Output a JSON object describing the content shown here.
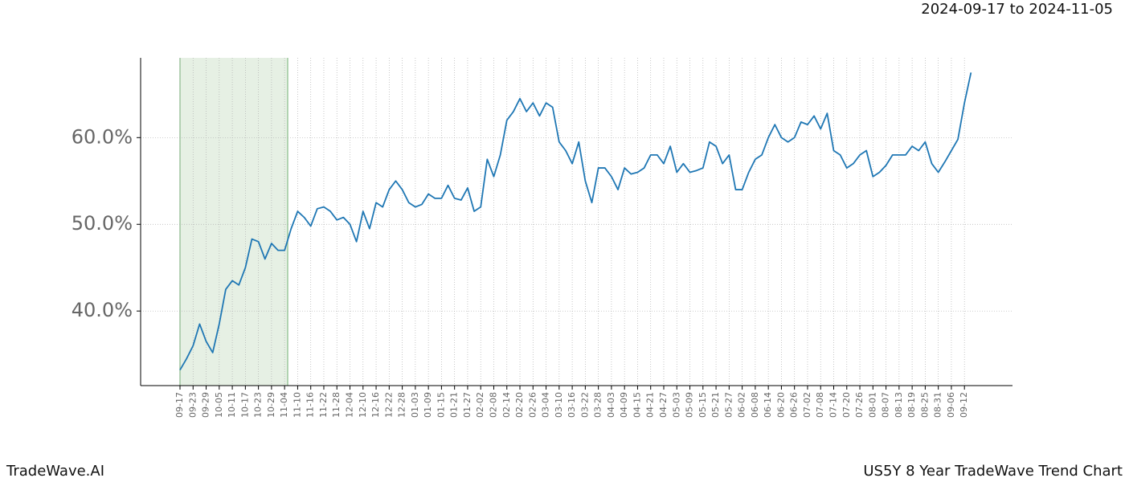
{
  "chart_data": {
    "type": "line",
    "title": "2024-09-17 to 2024-11-05",
    "footer_left": "TradeWave.AI",
    "footer_right": "US5Y 8 Year TradeWave Trend Chart",
    "categories": [
      "09-17",
      null,
      "09-23",
      null,
      "09-29",
      null,
      "10-05",
      null,
      "10-11",
      null,
      "10-17",
      null,
      "10-23",
      null,
      "10-29",
      null,
      "11-04",
      null,
      "11-10",
      null,
      "11-16",
      null,
      "11-22",
      null,
      "11-28",
      null,
      "12-04",
      null,
      "12-10",
      null,
      "12-16",
      null,
      "12-22",
      null,
      "12-28",
      null,
      "01-03",
      null,
      "01-09",
      null,
      "01-15",
      null,
      "01-21",
      null,
      "01-27",
      null,
      "02-02",
      null,
      "02-08",
      null,
      "02-14",
      null,
      "02-20",
      null,
      "02-26",
      null,
      "03-04",
      null,
      "03-10",
      null,
      "03-16",
      null,
      "03-22",
      null,
      "03-28",
      null,
      "04-03",
      null,
      "04-09",
      null,
      "04-15",
      null,
      "04-21",
      null,
      "04-27",
      null,
      "05-03",
      null,
      "05-09",
      null,
      "05-15",
      null,
      "05-21",
      null,
      "05-27",
      null,
      "06-02",
      null,
      "06-08",
      null,
      "06-14",
      null,
      "06-20",
      null,
      "06-26",
      null,
      "07-02",
      null,
      "07-08",
      null,
      "07-14",
      null,
      "07-20",
      null,
      "07-26",
      null,
      "08-01",
      null,
      "08-07",
      null,
      "08-13",
      null,
      "08-19",
      null,
      "08-25",
      null,
      "08-31",
      null,
      "09-06",
      null,
      "09-12",
      null
    ],
    "values": [
      33.2,
      34.5,
      36,
      38.5,
      36.5,
      35.2,
      38.5,
      42.5,
      43.5,
      43,
      45,
      48.3,
      48,
      46,
      47.8,
      47,
      47,
      49.5,
      51.5,
      50.8,
      49.8,
      51.8,
      52,
      51.5,
      50.5,
      50.8,
      50,
      48,
      51.5,
      49.5,
      52.5,
      52,
      54,
      55,
      54,
      52.5,
      52,
      52.3,
      53.5,
      53,
      53,
      54.5,
      53,
      52.8,
      54.2,
      51.5,
      52,
      57.5,
      55.5,
      58,
      62,
      63,
      64.5,
      63,
      64,
      62.5,
      64,
      63.5,
      59.5,
      58.5,
      57,
      59.5,
      55,
      52.5,
      56.5,
      56.5,
      55.5,
      54,
      56.5,
      55.8,
      56,
      56.5,
      58,
      58,
      57,
      59,
      56,
      57,
      56,
      56.2,
      56.5,
      59.5,
      59,
      57,
      58,
      54,
      54,
      56,
      57.5,
      58,
      60,
      61.5,
      60,
      59.5,
      60,
      61.8,
      61.5,
      62.5,
      61,
      62.8,
      58.5,
      58,
      56.5,
      57,
      58,
      58.5,
      55.5,
      56,
      56.8,
      58,
      58,
      58,
      59,
      58.5,
      59.5,
      57,
      56,
      57.2,
      58.5,
      59.8,
      64,
      67.5
    ],
    "color": "#1f77b4",
    "ylim": [
      31.4,
      69.2
    ],
    "yticks": [
      {
        "value": 40,
        "label": "40.0%"
      },
      {
        "value": 50,
        "label": "50.0%"
      },
      {
        "value": 60,
        "label": "60.0%"
      }
    ],
    "grid": true
  }
}
